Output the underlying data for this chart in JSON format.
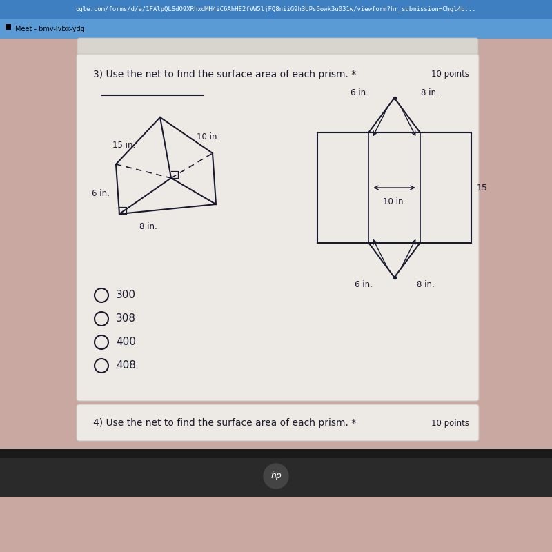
{
  "title": "3) Use the net to find the surface area of each prism. *",
  "points_label": "10 points",
  "browser_bar_color": "#4a90d9",
  "browser_bar2_color": "#5b9bd5",
  "browser_url": "ogle.com/forms/d/e/1FAlpQLSdO9XRhxdMH4iC6AhHE2fVW5ljFQ8niiG9h3UPs0owk3u031w/viewform?hr_submission=Chgl4b...",
  "browser_tab": "Meet - bmv-lvbx-ydq",
  "bg_color": "#c8a8a0",
  "card_color": "#edeae5",
  "choices": [
    "300",
    "308",
    "400",
    "408"
  ],
  "footer_text": "4) Use the net to find the surface area of each prism. *",
  "footer_points": "10 points",
  "line_color": "#1a1a2e"
}
